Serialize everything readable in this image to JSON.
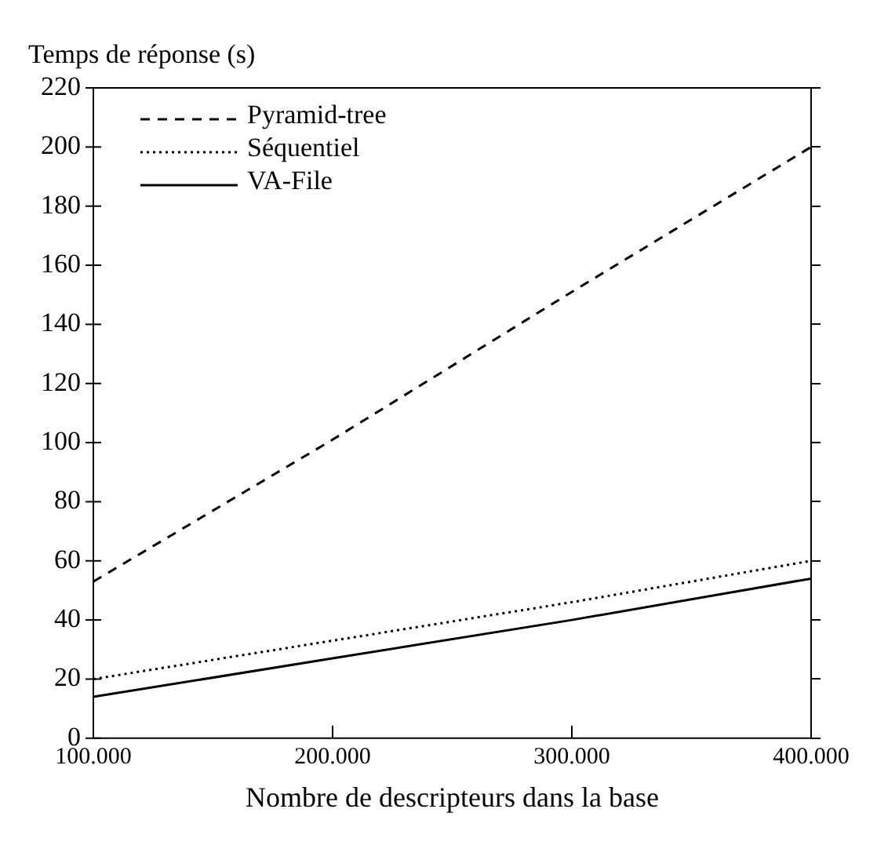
{
  "chart_data": {
    "type": "line",
    "xlabel": "Nombre de descripteurs dans la base",
    "ylabel": "Temps de réponse (s)",
    "x": [
      100000,
      200000,
      300000,
      400000
    ],
    "series": [
      {
        "name": "Pyramid-tree",
        "color": "#000000",
        "line_style": "dashed",
        "values": [
          53,
          101,
          151,
          200
        ]
      },
      {
        "name": "Séquentiel",
        "color": "#000000",
        "line_style": "dotted",
        "values": [
          20,
          33,
          46,
          60
        ]
      },
      {
        "name": "VA-File",
        "color": "#000000",
        "line_style": "solid",
        "values": [
          14,
          27,
          40,
          54
        ]
      }
    ],
    "xlim": [
      100000,
      400000
    ],
    "xticks": [
      {
        "value": 100000,
        "label": "100.000"
      },
      {
        "value": 200000,
        "label": "200.000"
      },
      {
        "value": 300000,
        "label": "300.000"
      },
      {
        "value": 400000,
        "label": "400.000"
      }
    ],
    "ylim": [
      0,
      220
    ],
    "yticks": [
      0,
      20,
      40,
      60,
      80,
      100,
      120,
      140,
      160,
      180,
      200,
      220
    ],
    "grid": false,
    "legend": "top left",
    "marker": "none"
  }
}
